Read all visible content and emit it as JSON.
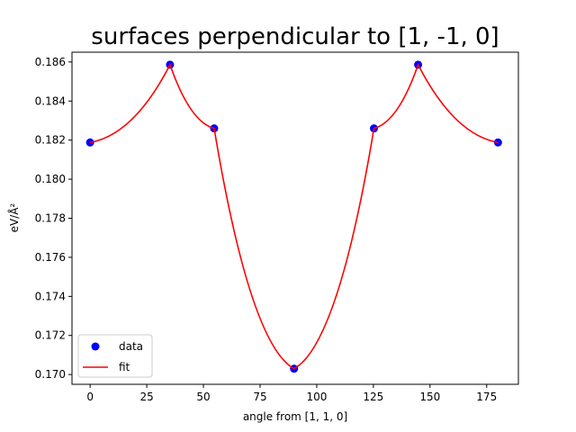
{
  "chart_data": {
    "type": "line",
    "title": "surfaces perpendicular to [1, -1, 0]",
    "xlabel": "angle from [1, 1, 0]",
    "ylabel": "eV/Å²",
    "xlim": [
      -8,
      189
    ],
    "ylim": [
      0.1695,
      0.1865
    ],
    "x_ticks": [
      0,
      25,
      50,
      75,
      100,
      125,
      150,
      175
    ],
    "y_ticks": [
      0.17,
      0.172,
      0.174,
      0.176,
      0.178,
      0.18,
      0.182,
      0.184,
      0.186
    ],
    "x_tick_labels": [
      "0",
      "25",
      "50",
      "75",
      "100",
      "125",
      "150",
      "175"
    ],
    "y_tick_labels": [
      "0.170",
      "0.172",
      "0.174",
      "0.176",
      "0.178",
      "0.180",
      "0.182",
      "0.184",
      "0.186"
    ],
    "grid": false,
    "legend_position": "lower-left",
    "series": [
      {
        "name": "data",
        "style": "markers",
        "color": "#0000ff",
        "x": [
          0,
          35.26,
          54.74,
          90,
          125.26,
          144.74,
          180
        ],
        "y": [
          0.18188,
          0.18586,
          0.1826,
          0.1703,
          0.1826,
          0.18586,
          0.18188
        ]
      },
      {
        "name": "fit",
        "style": "line",
        "color": "#ff0000",
        "x": [
          0,
          35.26,
          54.74,
          90,
          125.26,
          144.74,
          180
        ],
        "y": [
          0.18188,
          0.18586,
          0.1826,
          0.1703,
          0.1826,
          0.18586,
          0.18188
        ]
      }
    ]
  }
}
